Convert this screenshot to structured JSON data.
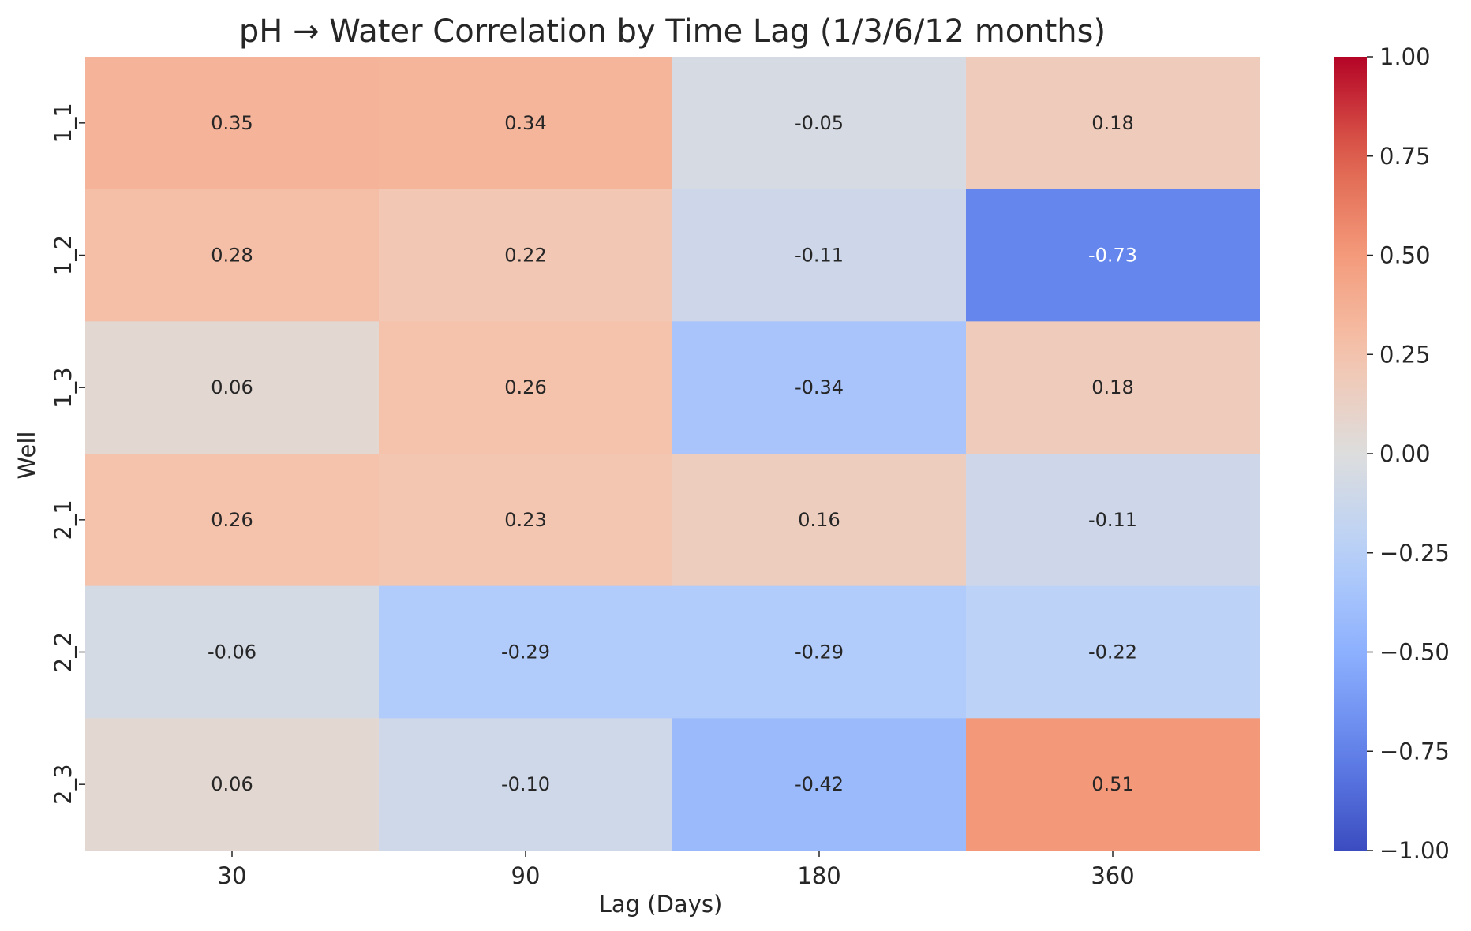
{
  "chart_data": {
    "type": "heatmap",
    "title": "pH → Water Correlation by Time Lag (1/3/6/12 months)",
    "xlabel": "Lag (Days)",
    "ylabel": "Well",
    "x_categories": [
      "30",
      "90",
      "180",
      "360"
    ],
    "y_categories": [
      "1_1",
      "1_2",
      "1_3",
      "2_1",
      "2_2",
      "2_3"
    ],
    "values": [
      [
        0.35,
        0.34,
        -0.05,
        0.18
      ],
      [
        0.28,
        0.22,
        -0.11,
        -0.73
      ],
      [
        0.06,
        0.26,
        -0.34,
        0.18
      ],
      [
        0.26,
        0.23,
        0.16,
        -0.11
      ],
      [
        -0.06,
        -0.29,
        -0.29,
        -0.22
      ],
      [
        0.06,
        -0.1,
        -0.42,
        0.51
      ]
    ],
    "colormap": "coolwarm",
    "vmin": -1.0,
    "vmax": 1.0,
    "colorbar_ticks": [
      "1.00",
      "0.75",
      "0.50",
      "0.25",
      "0.00",
      "−0.25",
      "−0.50",
      "−0.75",
      "−1.00"
    ],
    "annotations": true
  }
}
